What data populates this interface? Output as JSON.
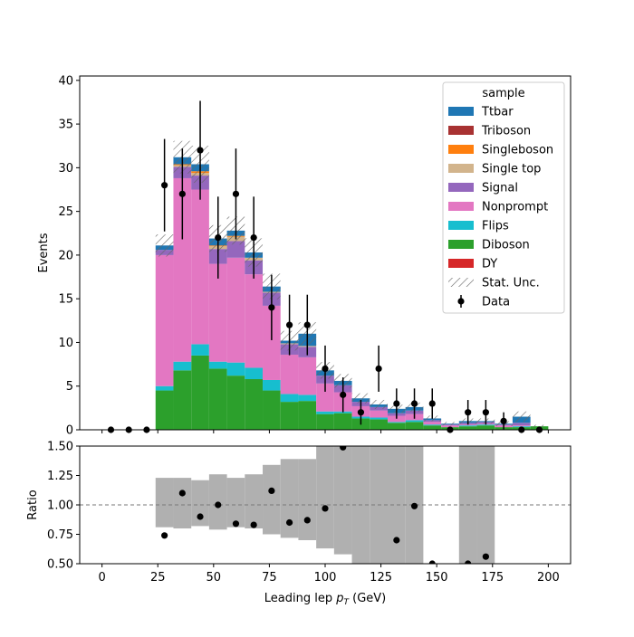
{
  "chart_data": {
    "type": "bar",
    "subtype": "stacked-step-histogram-with-ratio-panel",
    "xlabel_prefix": "Leading lep ",
    "xlabel_var": "p",
    "xlabel_sub": "T",
    "xlabel_suffix": " (GeV)",
    "ylabel": "Events",
    "ratio_ylabel": "Ratio",
    "xlim": [
      -10,
      210
    ],
    "ylim": [
      0,
      40.5
    ],
    "ratio_ylim": [
      0.5,
      1.5
    ],
    "xticks": [
      0,
      25,
      50,
      75,
      100,
      125,
      150,
      175,
      200
    ],
    "yticks": [
      0,
      5,
      10,
      15,
      20,
      25,
      30,
      35,
      40
    ],
    "ratio_yticks": [
      0.5,
      0.75,
      1.0,
      1.25,
      1.5
    ],
    "ratio_ytick_labels": [
      "0.50",
      "0.75",
      "1.00",
      "1.25",
      "1.50"
    ],
    "bin_edges": [
      0,
      8,
      16,
      24,
      32,
      40,
      48,
      56,
      64,
      72,
      80,
      88,
      96,
      104,
      112,
      120,
      128,
      136,
      144,
      152,
      160,
      168,
      176,
      184,
      192,
      200
    ],
    "stack_order_bottom_to_top": [
      "DY",
      "Diboson",
      "Flips",
      "Nonprompt",
      "Signal",
      "Single top",
      "Singleboson",
      "Triboson",
      "Ttbar"
    ],
    "series": [
      {
        "name": "DY",
        "color": "#d62728",
        "values": [
          0,
          0,
          0,
          0,
          0,
          0,
          0,
          0,
          0,
          0,
          0,
          0,
          0,
          0,
          0,
          0,
          0,
          0,
          0,
          0,
          0,
          0,
          0,
          0,
          0
        ]
      },
      {
        "name": "Diboson",
        "color": "#2ca02c",
        "values": [
          0,
          0,
          0,
          4.5,
          6.8,
          8.5,
          7.0,
          6.2,
          5.8,
          4.5,
          3.2,
          3.3,
          1.8,
          1.9,
          1.3,
          1.2,
          0.8,
          0.9,
          0.5,
          0.3,
          0.4,
          0.5,
          0.3,
          0.3,
          0.4
        ]
      },
      {
        "name": "Flips",
        "color": "#17becf",
        "values": [
          0,
          0,
          0,
          0.5,
          1.0,
          1.3,
          0.8,
          1.5,
          1.3,
          1.2,
          0.9,
          0.7,
          0.3,
          0.2,
          0.2,
          0.2,
          0.1,
          0.2,
          0.1,
          0,
          0.1,
          0.1,
          0,
          0.1,
          0
        ]
      },
      {
        "name": "Nonprompt",
        "color": "#e377c2",
        "values": [
          0,
          0,
          0,
          15.0,
          21.0,
          17.7,
          11.2,
          12.0,
          10.7,
          8.5,
          4.5,
          4.3,
          3.2,
          2.2,
          1.2,
          0.8,
          0.7,
          0.7,
          0.3,
          0.2,
          0.1,
          0.1,
          0.2,
          0.1,
          0
        ]
      },
      {
        "name": "Signal",
        "color": "#9467bd",
        "values": [
          0,
          0,
          0,
          0.6,
          1.3,
          1.6,
          1.7,
          1.9,
          1.6,
          1.5,
          1.2,
          1.2,
          0.9,
          0.8,
          0.5,
          0.4,
          0.3,
          0.4,
          0.2,
          0.1,
          0.2,
          0.2,
          0.1,
          0.3,
          0
        ]
      },
      {
        "name": "Single top",
        "color": "#d2b48c",
        "values": [
          0,
          0,
          0,
          0,
          0.2,
          0.3,
          0.3,
          0.5,
          0.3,
          0.1,
          0.1,
          0.1,
          0,
          0,
          0,
          0,
          0,
          0,
          0,
          0,
          0,
          0,
          0,
          0,
          0
        ]
      },
      {
        "name": "Singleboson",
        "color": "#ff7f0e",
        "values": [
          0,
          0,
          0,
          0,
          0.1,
          0.2,
          0.1,
          0.1,
          0,
          0,
          0,
          0,
          0,
          0,
          0,
          0,
          0,
          0,
          0,
          0,
          0,
          0,
          0,
          0,
          0
        ]
      },
      {
        "name": "Triboson",
        "color": "#a83232",
        "values": [
          0,
          0,
          0,
          0,
          0,
          0,
          0,
          0,
          0,
          0,
          0,
          0,
          0,
          0,
          0,
          0,
          0,
          0,
          0,
          0,
          0,
          0,
          0,
          0,
          0
        ]
      },
      {
        "name": "Ttbar",
        "color": "#1f77b4",
        "values": [
          0,
          0,
          0,
          0.5,
          0.8,
          0.8,
          0.8,
          0.6,
          0.6,
          0.6,
          0.3,
          1.4,
          0.6,
          0.5,
          0.4,
          0.3,
          0.5,
          0.4,
          0.2,
          0.1,
          0.2,
          0.1,
          0.1,
          0.7,
          0
        ]
      }
    ],
    "stat_unc_rel": [
      0,
      0,
      0,
      0.06,
      0.06,
      0.07,
      0.07,
      0.07,
      0.08,
      0.09,
      0.11,
      0.12,
      0.14,
      0.14,
      0.16,
      0.18,
      0.2,
      0.2,
      0.25,
      0.3,
      0.3,
      0.3,
      0.4,
      0.4,
      0.4
    ],
    "data": {
      "name": "Data",
      "x": [
        4,
        12,
        20,
        28,
        36,
        44,
        52,
        60,
        68,
        76,
        84,
        92,
        100,
        108,
        116,
        124,
        132,
        140,
        148,
        156,
        164,
        172,
        180,
        188,
        196
      ],
      "y": [
        0,
        0,
        0,
        28,
        27,
        32,
        22,
        27,
        22,
        14,
        12,
        12,
        7,
        4,
        2,
        7,
        3,
        3,
        3,
        0,
        2,
        2,
        1,
        0,
        0
      ]
    },
    "ratio": {
      "x": [
        28,
        36,
        44,
        52,
        60,
        68,
        76,
        84,
        92,
        100,
        108,
        132,
        140,
        148,
        164,
        172
      ],
      "y": [
        0.74,
        1.1,
        0.9,
        1.0,
        0.84,
        0.83,
        1.12,
        0.85,
        0.87,
        0.97,
        1.49,
        0.7,
        0.99,
        0.5,
        0.5,
        0.56
      ],
      "band_low": [
        null,
        null,
        null,
        0.81,
        0.8,
        0.82,
        0.79,
        0.81,
        0.8,
        0.75,
        0.72,
        0.7,
        0.63,
        0.58,
        0.5,
        0.5,
        0.5,
        0.5,
        null,
        null,
        0.5,
        0.5,
        null,
        null,
        null
      ],
      "band_high": [
        null,
        null,
        null,
        1.23,
        1.23,
        1.21,
        1.26,
        1.23,
        1.26,
        1.34,
        1.39,
        1.39,
        1.5,
        1.5,
        1.5,
        1.5,
        1.5,
        1.5,
        null,
        null,
        1.5,
        1.5,
        null,
        null,
        null
      ]
    },
    "legend": {
      "title": "sample",
      "placement": "upper right",
      "entries": [
        {
          "label": "Ttbar",
          "kind": "patch",
          "color": "#1f77b4"
        },
        {
          "label": "Triboson",
          "kind": "patch",
          "color": "#a83232"
        },
        {
          "label": "Singleboson",
          "kind": "patch",
          "color": "#ff7f0e"
        },
        {
          "label": "Single top",
          "kind": "patch",
          "color": "#d2b48c"
        },
        {
          "label": "Signal",
          "kind": "patch",
          "color": "#9467bd"
        },
        {
          "label": "Nonprompt",
          "kind": "patch",
          "color": "#e377c2"
        },
        {
          "label": "Flips",
          "kind": "patch",
          "color": "#17becf"
        },
        {
          "label": "Diboson",
          "kind": "patch",
          "color": "#2ca02c"
        },
        {
          "label": "DY",
          "kind": "patch",
          "color": "#d62728"
        },
        {
          "label": "Stat. Unc.",
          "kind": "hatch",
          "color": "#777777"
        },
        {
          "label": "Data",
          "kind": "marker",
          "color": "#000000"
        }
      ]
    }
  }
}
